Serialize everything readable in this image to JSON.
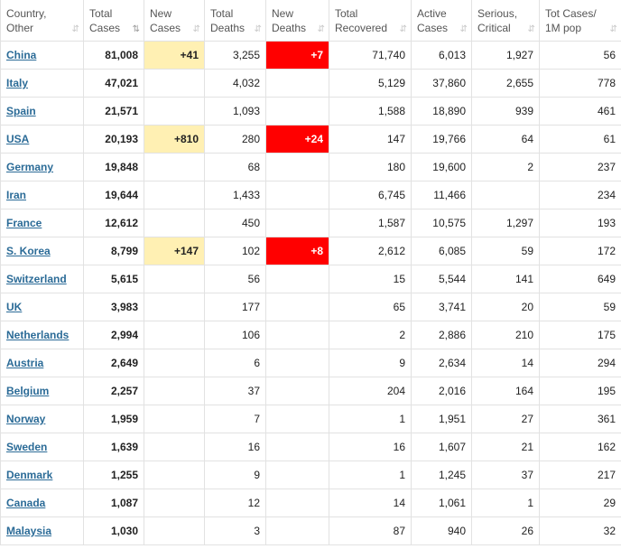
{
  "headers": [
    {
      "line1": "Country,",
      "line2": "Other",
      "key": "country"
    },
    {
      "line1": "Total",
      "line2": "Cases",
      "key": "total_cases",
      "sorted": true
    },
    {
      "line1": "New",
      "line2": "Cases",
      "key": "new_cases"
    },
    {
      "line1": "Total",
      "line2": "Deaths",
      "key": "total_deaths"
    },
    {
      "line1": "New",
      "line2": "Deaths",
      "key": "new_deaths"
    },
    {
      "line1": "Total",
      "line2": "Recovered",
      "key": "total_recovered"
    },
    {
      "line1": "Active",
      "line2": "Cases",
      "key": "active_cases"
    },
    {
      "line1": "Serious,",
      "line2": "Critical",
      "key": "serious_critical"
    },
    {
      "line1": "Tot Cases/",
      "line2": "1M pop",
      "key": "cases_per_1m"
    }
  ],
  "header_text_color": "#ffffff",
  "link_color": "#2b6b97",
  "new_cases_highlight": "#fff0b3",
  "new_deaths_highlight": "#ff0000",
  "rows": [
    {
      "country": "China",
      "total_cases": "81,008",
      "new_cases": "+41",
      "total_deaths": "3,255",
      "new_deaths": "+7",
      "total_recovered": "71,740",
      "active_cases": "6,013",
      "serious_critical": "1,927",
      "cases_per_1m": "56"
    },
    {
      "country": "Italy",
      "total_cases": "47,021",
      "new_cases": "",
      "total_deaths": "4,032",
      "new_deaths": "",
      "total_recovered": "5,129",
      "active_cases": "37,860",
      "serious_critical": "2,655",
      "cases_per_1m": "778"
    },
    {
      "country": "Spain",
      "total_cases": "21,571",
      "new_cases": "",
      "total_deaths": "1,093",
      "new_deaths": "",
      "total_recovered": "1,588",
      "active_cases": "18,890",
      "serious_critical": "939",
      "cases_per_1m": "461"
    },
    {
      "country": "USA",
      "total_cases": "20,193",
      "new_cases": "+810",
      "total_deaths": "280",
      "new_deaths": "+24",
      "total_recovered": "147",
      "active_cases": "19,766",
      "serious_critical": "64",
      "cases_per_1m": "61"
    },
    {
      "country": "Germany",
      "total_cases": "19,848",
      "new_cases": "",
      "total_deaths": "68",
      "new_deaths": "",
      "total_recovered": "180",
      "active_cases": "19,600",
      "serious_critical": "2",
      "cases_per_1m": "237"
    },
    {
      "country": "Iran",
      "total_cases": "19,644",
      "new_cases": "",
      "total_deaths": "1,433",
      "new_deaths": "",
      "total_recovered": "6,745",
      "active_cases": "11,466",
      "serious_critical": "",
      "cases_per_1m": "234"
    },
    {
      "country": "France",
      "total_cases": "12,612",
      "new_cases": "",
      "total_deaths": "450",
      "new_deaths": "",
      "total_recovered": "1,587",
      "active_cases": "10,575",
      "serious_critical": "1,297",
      "cases_per_1m": "193"
    },
    {
      "country": "S. Korea",
      "total_cases": "8,799",
      "new_cases": "+147",
      "total_deaths": "102",
      "new_deaths": "+8",
      "total_recovered": "2,612",
      "active_cases": "6,085",
      "serious_critical": "59",
      "cases_per_1m": "172"
    },
    {
      "country": "Switzerland",
      "total_cases": "5,615",
      "new_cases": "",
      "total_deaths": "56",
      "new_deaths": "",
      "total_recovered": "15",
      "active_cases": "5,544",
      "serious_critical": "141",
      "cases_per_1m": "649"
    },
    {
      "country": "UK",
      "total_cases": "3,983",
      "new_cases": "",
      "total_deaths": "177",
      "new_deaths": "",
      "total_recovered": "65",
      "active_cases": "3,741",
      "serious_critical": "20",
      "cases_per_1m": "59"
    },
    {
      "country": "Netherlands",
      "total_cases": "2,994",
      "new_cases": "",
      "total_deaths": "106",
      "new_deaths": "",
      "total_recovered": "2",
      "active_cases": "2,886",
      "serious_critical": "210",
      "cases_per_1m": "175"
    },
    {
      "country": "Austria",
      "total_cases": "2,649",
      "new_cases": "",
      "total_deaths": "6",
      "new_deaths": "",
      "total_recovered": "9",
      "active_cases": "2,634",
      "serious_critical": "14",
      "cases_per_1m": "294"
    },
    {
      "country": "Belgium",
      "total_cases": "2,257",
      "new_cases": "",
      "total_deaths": "37",
      "new_deaths": "",
      "total_recovered": "204",
      "active_cases": "2,016",
      "serious_critical": "164",
      "cases_per_1m": "195"
    },
    {
      "country": "Norway",
      "total_cases": "1,959",
      "new_cases": "",
      "total_deaths": "7",
      "new_deaths": "",
      "total_recovered": "1",
      "active_cases": "1,951",
      "serious_critical": "27",
      "cases_per_1m": "361"
    },
    {
      "country": "Sweden",
      "total_cases": "1,639",
      "new_cases": "",
      "total_deaths": "16",
      "new_deaths": "",
      "total_recovered": "16",
      "active_cases": "1,607",
      "serious_critical": "21",
      "cases_per_1m": "162"
    },
    {
      "country": "Denmark",
      "total_cases": "1,255",
      "new_cases": "",
      "total_deaths": "9",
      "new_deaths": "",
      "total_recovered": "1",
      "active_cases": "1,245",
      "serious_critical": "37",
      "cases_per_1m": "217"
    },
    {
      "country": "Canada",
      "total_cases": "1,087",
      "new_cases": "",
      "total_deaths": "12",
      "new_deaths": "",
      "total_recovered": "14",
      "active_cases": "1,061",
      "serious_critical": "1",
      "cases_per_1m": "29"
    },
    {
      "country": "Malaysia",
      "total_cases": "1,030",
      "new_cases": "",
      "total_deaths": "3",
      "new_deaths": "",
      "total_recovered": "87",
      "active_cases": "940",
      "serious_critical": "26",
      "cases_per_1m": "32"
    }
  ]
}
